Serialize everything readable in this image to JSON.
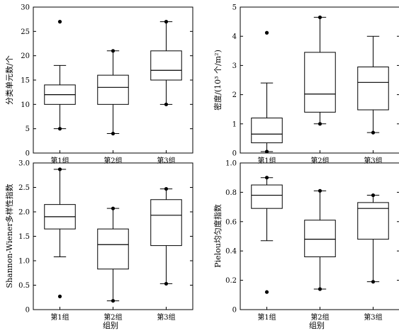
{
  "x_title": "组别",
  "chart_data": [
    {
      "type": "box",
      "ylabel": "分类单元数/个",
      "ylabel_html": "分类单元数/个",
      "categories": [
        "第1组",
        "第2组",
        "第3组"
      ],
      "ylim": [
        0,
        30
      ],
      "yticks": [
        0,
        5,
        10,
        15,
        20,
        25,
        30
      ],
      "boxes": [
        {
          "whisker_low": 5,
          "q1": 10,
          "median": 12,
          "q3": 14,
          "whisker_high": 18,
          "outliers": [
            27,
            5
          ]
        },
        {
          "whisker_low": 4,
          "q1": 10,
          "median": 13.5,
          "q3": 16,
          "whisker_high": 21,
          "outliers": [
            21,
            4
          ]
        },
        {
          "whisker_low": 10,
          "q1": 15,
          "median": 17,
          "q3": 21,
          "whisker_high": 27,
          "outliers": [
            27,
            10
          ]
        }
      ]
    },
    {
      "type": "box",
      "ylabel": "密度/(10³ 个/m²)",
      "categories": [
        "第1组",
        "第2组",
        "第3组"
      ],
      "ylim": [
        0,
        5
      ],
      "yticks": [
        0,
        1,
        2,
        3,
        4,
        5
      ],
      "boxes": [
        {
          "whisker_low": 0.05,
          "q1": 0.35,
          "median": 0.65,
          "q3": 1.2,
          "whisker_high": 2.4,
          "outliers": [
            4.12,
            0.05
          ]
        },
        {
          "whisker_low": 1.0,
          "q1": 1.4,
          "median": 2.02,
          "q3": 3.45,
          "whisker_high": 4.65,
          "outliers": [
            4.65,
            1.0
          ]
        },
        {
          "whisker_low": 0.7,
          "q1": 1.48,
          "median": 2.42,
          "q3": 2.95,
          "whisker_high": 4.0,
          "outliers": [
            0.7
          ]
        }
      ]
    },
    {
      "type": "box",
      "ylabel": "Shannon-Wiener多样性指数",
      "categories": [
        "第1组",
        "第2组",
        "第3组"
      ],
      "ylim": [
        0,
        3.0
      ],
      "yticks": [
        "0",
        "0.5",
        "1.0",
        "1.5",
        "2.0",
        "2.5",
        "3.0"
      ],
      "boxes": [
        {
          "whisker_low": 1.08,
          "q1": 1.65,
          "median": 1.9,
          "q3": 2.15,
          "whisker_high": 2.87,
          "outliers": [
            2.87,
            0.27
          ]
        },
        {
          "whisker_low": 0.18,
          "q1": 0.83,
          "median": 1.33,
          "q3": 1.65,
          "whisker_high": 2.07,
          "outliers": [
            2.07,
            0.18
          ]
        },
        {
          "whisker_low": 0.53,
          "q1": 1.31,
          "median": 1.93,
          "q3": 2.25,
          "whisker_high": 2.47,
          "outliers": [
            2.47,
            0.53
          ]
        }
      ]
    },
    {
      "type": "box",
      "ylabel": "Pielou均匀度指数",
      "categories": [
        "第1组",
        "第2组",
        "第3组"
      ],
      "ylim": [
        0,
        1.0
      ],
      "yticks": [
        "0",
        "0.2",
        "0.4",
        "0.6",
        "0.8",
        "1.0"
      ],
      "boxes": [
        {
          "whisker_low": 0.47,
          "q1": 0.69,
          "median": 0.78,
          "q3": 0.85,
          "whisker_high": 0.9,
          "outliers": [
            0.9,
            0.12
          ]
        },
        {
          "whisker_low": 0.14,
          "q1": 0.36,
          "median": 0.48,
          "q3": 0.61,
          "whisker_high": 0.81,
          "outliers": [
            0.81,
            0.14
          ]
        },
        {
          "whisker_low": 0.19,
          "q1": 0.48,
          "median": 0.69,
          "q3": 0.73,
          "whisker_high": 0.78,
          "outliers": [
            0.78,
            0.19
          ]
        }
      ]
    }
  ]
}
